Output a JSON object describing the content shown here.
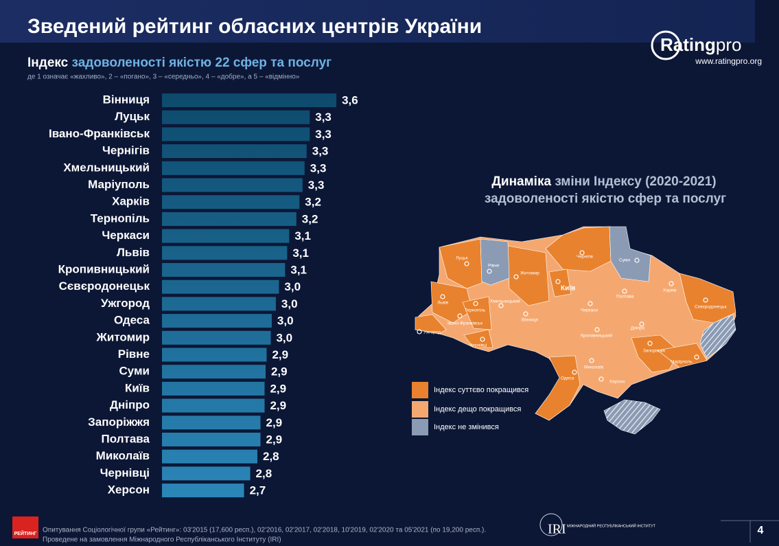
{
  "header": {
    "title": "Зведений рейтинг обласних центрів України",
    "logo": "Rating",
    "logo_suffix": "pro",
    "url": "www.ratingpro.org"
  },
  "chart_data": {
    "type": "bar",
    "orientation": "horizontal",
    "title_bold": "Індекс",
    "title": "задоволеності якістю 22 сфер та послуг",
    "subtitle": "де 1 означає «жахливо», 2 – «погано», 3 – «середньо», 4 – «добре», а 5 – «відмінно»",
    "categories": [
      "Вінниця",
      "Луцьк",
      "Івано-Франківськ",
      "Чернігів",
      "Хмельницький",
      "Маріуполь",
      "Харків",
      "Тернопіль",
      "Черкаси",
      "Львів",
      "Кропивницький",
      "Сєвєродонецьк",
      "Ужгород",
      "Одеса",
      "Житомир",
      "Рівне",
      "Суми",
      "Київ",
      "Дніпро",
      "Запоріжжя",
      "Полтава",
      "Миколаїв",
      "Чернівці",
      "Херсон"
    ],
    "values": [
      3.6,
      3.34,
      3.34,
      3.31,
      3.29,
      3.27,
      3.24,
      3.21,
      3.14,
      3.12,
      3.1,
      3.04,
      3.01,
      2.97,
      2.96,
      2.92,
      2.91,
      2.9,
      2.9,
      2.86,
      2.86,
      2.83,
      2.76,
      2.7
    ],
    "value_labels": [
      "3,6",
      "3,3",
      "3,3",
      "3,3",
      "3,3",
      "3,3",
      "3,2",
      "3,2",
      "3,1",
      "3,1",
      "3,1",
      "3,0",
      "3,0",
      "3,0",
      "3,0",
      "2,9",
      "2,9",
      "2,9",
      "2,9",
      "2,9",
      "2,9",
      "2,8",
      "2,8",
      "2,7"
    ],
    "xlim": [
      1.9,
      3.8
    ]
  },
  "map": {
    "title_bold": "Динаміка",
    "title": "зміни Індексу (2020-2021)",
    "title_line2": "задоволеності якістю сфер та послуг",
    "cities": [
      "Луцьк",
      "Рівне",
      "Житомир",
      "Чернігів",
      "Суми",
      "Київ",
      "Харків",
      "Полтава",
      "Львів",
      "Тернопіль",
      "Хмельницький",
      "Вінниця",
      "Черкаси",
      "Івано-Франківськ",
      "Ужгород",
      "Чернівці",
      "Кропивницький",
      "Дніпро",
      "Сєвєродонецьк",
      "Запоріжжя",
      "Маріуполь",
      "Миколаїв",
      "Одеса",
      "Херсон"
    ],
    "legend": [
      {
        "label": "Індекс суттєво покращився",
        "color": "#e8822e"
      },
      {
        "label": "Індекс дещо покращився",
        "color": "#f4a870"
      },
      {
        "label": "Індекс не змінився",
        "color": "#8b9bb4"
      }
    ]
  },
  "footer": {
    "source": "Опитування Соціологічної групи «Рейтинг»: 03'2015 (17,600 респ.), 02'2016, 02'2017, 02'2018, 10'2019, 02'2020 та 05'2021 (по 19,200 респ.).",
    "commission": "Проведене на замовлення Міжнародного Республіканського Інституту (IRI)",
    "brand": "РЕЙТИНГ",
    "iri": "IRI",
    "iri_name": "МІЖНАРОДНИЙ РЕСПУБЛІКАНСЬКИЙ ІНСТИТУТ",
    "page": 4
  }
}
